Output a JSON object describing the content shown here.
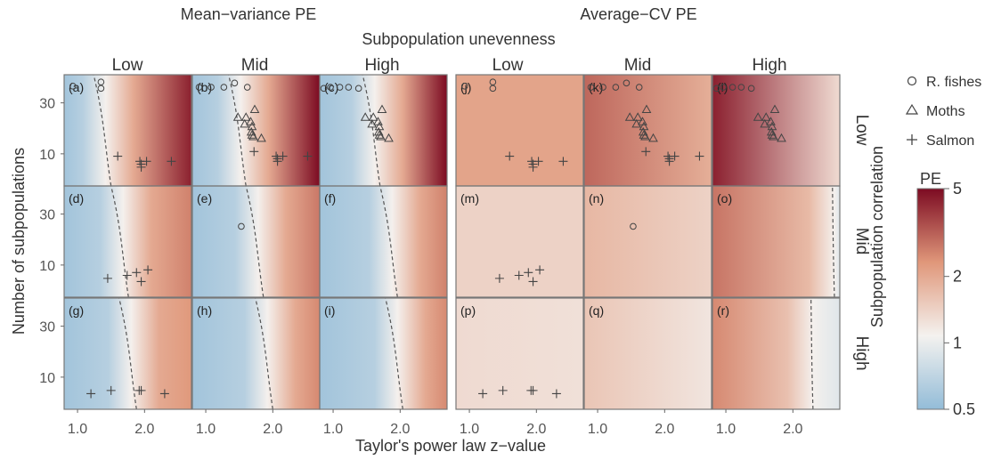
{
  "titles": {
    "left_group": "Mean−variance PE",
    "right_group": "Average−CV PE",
    "columns_super": "Subpopulation unevenness"
  },
  "columns": [
    "Low",
    "Mid",
    "High",
    "Low",
    "Mid",
    "High"
  ],
  "rows": [
    "Low",
    "Mid",
    "High"
  ],
  "row_axis_label": "Subpopulation correlation",
  "chart_data": {
    "type": "heatmap",
    "xlabel": "Taylor's power law z−value",
    "ylabel": "Number of subpopulations",
    "xlim": [
      0.8,
      2.7
    ],
    "ylim": [
      5,
      55
    ],
    "y_scale": "log",
    "x_ticks": [
      "1.0",
      "2.0"
    ],
    "y_ticks": [
      "10",
      "30"
    ],
    "colorbar": {
      "title": "PE",
      "ticks": [
        "0.5",
        "1",
        "2",
        "5"
      ],
      "range": [
        0.5,
        5
      ],
      "scale": "log",
      "colors": [
        "#93bcd8",
        "#f4f2ef",
        "#e0977a",
        "#7c0b22"
      ]
    },
    "legend": {
      "placement": "top-right",
      "entries": [
        {
          "symbol": "circle",
          "label": "R. fishes"
        },
        {
          "symbol": "triangle",
          "label": "Moths"
        },
        {
          "symbol": "plus",
          "label": "Salmon"
        }
      ]
    },
    "panels": [
      {
        "label": "(a)",
        "method": "mean-variance",
        "unevenness": "Low",
        "correlation": "Low",
        "x_pe1": 1.42
      },
      {
        "label": "(b)",
        "method": "mean-variance",
        "unevenness": "Mid",
        "correlation": "Low",
        "x_pe1": 1.52
      },
      {
        "label": "(c)",
        "method": "mean-variance",
        "unevenness": "High",
        "correlation": "Low",
        "x_pe1": 1.62
      },
      {
        "label": "(d)",
        "method": "mean-variance",
        "unevenness": "Low",
        "correlation": "Mid",
        "x_pe1": 1.68
      },
      {
        "label": "(e)",
        "method": "mean-variance",
        "unevenness": "Mid",
        "correlation": "Mid",
        "x_pe1": 1.78
      },
      {
        "label": "(f)",
        "method": "mean-variance",
        "unevenness": "High",
        "correlation": "Mid",
        "x_pe1": 1.88
      },
      {
        "label": "(g)",
        "method": "mean-variance",
        "unevenness": "Low",
        "correlation": "High",
        "x_pe1": 1.8
      },
      {
        "label": "(h)",
        "method": "mean-variance",
        "unevenness": "Mid",
        "correlation": "High",
        "x_pe1": 1.92
      },
      {
        "label": "(i)",
        "method": "mean-variance",
        "unevenness": "High",
        "correlation": "High",
        "x_pe1": 1.96
      },
      {
        "label": "(j)",
        "method": "average-CV",
        "unevenness": "Low",
        "correlation": "Low",
        "x_pe1": null
      },
      {
        "label": "(k)",
        "method": "average-CV",
        "unevenness": "Mid",
        "correlation": "Low",
        "x_pe1": null
      },
      {
        "label": "(l)",
        "method": "average-CV",
        "unevenness": "High",
        "correlation": "Low",
        "x_pe1": null
      },
      {
        "label": "(m)",
        "method": "average-CV",
        "unevenness": "Low",
        "correlation": "Mid",
        "x_pe1": null
      },
      {
        "label": "(n)",
        "method": "average-CV",
        "unevenness": "Mid",
        "correlation": "Mid",
        "x_pe1": null
      },
      {
        "label": "(o)",
        "method": "average-CV",
        "unevenness": "High",
        "correlation": "Mid",
        "x_pe1": 2.62
      },
      {
        "label": "(p)",
        "method": "average-CV",
        "unevenness": "Low",
        "correlation": "High",
        "x_pe1": null
      },
      {
        "label": "(q)",
        "method": "average-CV",
        "unevenness": "Mid",
        "correlation": "High",
        "x_pe1": null
      },
      {
        "label": "(r)",
        "method": "average-CV",
        "unevenness": "High",
        "correlation": "High",
        "x_pe1": 2.3
      }
    ],
    "series": [
      {
        "name": "R. fishes",
        "marker": "circle",
        "points": {
          "Low": [
            [
              0.93,
              43
            ],
            [
              1.35,
              47
            ],
            [
              1.35,
              41
            ]
          ],
          "Mid": [
            [
              0.9,
              42
            ],
            [
              1.08,
              42
            ],
            [
              1.27,
              42
            ],
            [
              1.43,
              46
            ],
            [
              1.62,
              42
            ]
          ],
          "High": [
            [
              0.86,
              41
            ],
            [
              0.96,
              42
            ],
            [
              1.1,
              42
            ],
            [
              1.23,
              42
            ],
            [
              1.38,
              41
            ]
          ]
        },
        "correlation_mid": [
          [
            1.53,
            23
          ]
        ]
      },
      {
        "name": "Moths",
        "marker": "triangle",
        "points": [
          [
            1.58,
            19
          ],
          [
            1.73,
            26
          ],
          [
            1.48,
            22
          ],
          [
            1.6,
            22
          ],
          [
            1.67,
            20
          ],
          [
            1.69,
            18
          ],
          [
            1.68,
            16
          ],
          [
            1.69,
            15
          ],
          [
            1.71,
            14.5
          ],
          [
            1.83,
            14
          ]
        ]
      },
      {
        "name": "Salmon",
        "marker": "plus",
        "points": {
          "Low": [
            [
              1.6,
              9.5
            ],
            [
              1.93,
              8.5
            ],
            [
              2.03,
              8.5
            ],
            [
              1.95,
              8
            ],
            [
              1.95,
              7.5
            ],
            [
              2.4,
              8.5
            ]
          ],
          "Mid": [
            [
              1.45,
              7.5
            ],
            [
              1.74,
              8
            ],
            [
              1.88,
              8.5
            ],
            [
              1.95,
              7
            ],
            [
              2.05,
              9
            ]
          ],
          "High": [
            [
              1.2,
              7
            ],
            [
              1.5,
              7.5
            ],
            [
              1.92,
              7.5
            ],
            [
              1.95,
              7.5
            ],
            [
              2.3,
              7
            ]
          ]
        }
      }
    ]
  }
}
